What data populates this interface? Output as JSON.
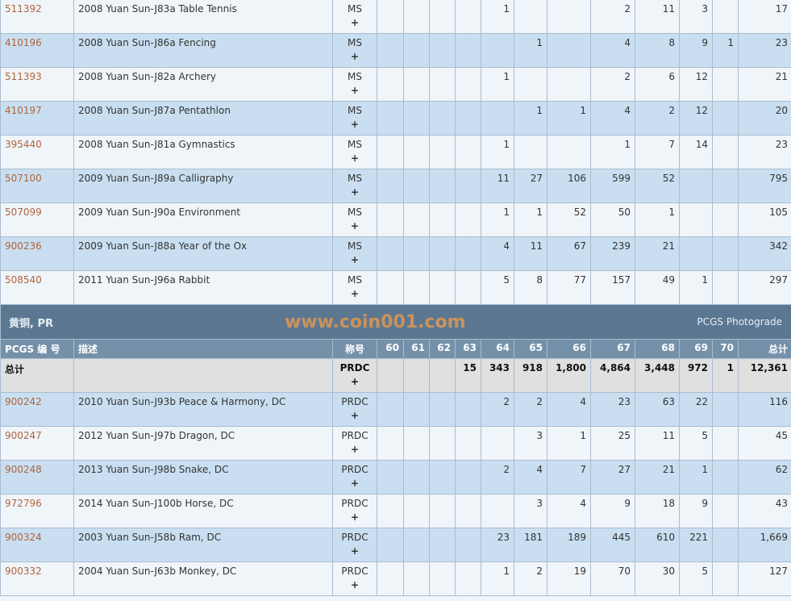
{
  "top_rows": [
    {
      "id": "511392",
      "desc": "2008 Yuan Sun-J83a Table Tennis",
      "des": "MS",
      "g": [
        "",
        "",
        "",
        "",
        "1",
        "",
        "",
        "2",
        "11",
        "3",
        "",
        "17"
      ]
    },
    {
      "id": "410196",
      "desc": "2008 Yuan Sun-J86a Fencing",
      "des": "MS",
      "g": [
        "",
        "",
        "",
        "",
        "",
        "1",
        "",
        "4",
        "8",
        "9",
        "1",
        "23"
      ]
    },
    {
      "id": "511393",
      "desc": "2008 Yuan Sun-J82a Archery",
      "des": "MS",
      "g": [
        "",
        "",
        "",
        "",
        "1",
        "",
        "",
        "2",
        "6",
        "12",
        "",
        "21"
      ]
    },
    {
      "id": "410197",
      "desc": "2008 Yuan Sun-J87a Pentathlon",
      "des": "MS",
      "g": [
        "",
        "",
        "",
        "",
        "",
        "1",
        "1",
        "4",
        "2",
        "12",
        "",
        "20"
      ]
    },
    {
      "id": "395440",
      "desc": "2008 Yuan Sun-J81a Gymnastics",
      "des": "MS",
      "g": [
        "",
        "",
        "",
        "",
        "1",
        "",
        "",
        "1",
        "7",
        "14",
        "",
        "23"
      ]
    },
    {
      "id": "507100",
      "desc": "2009 Yuan Sun-J89a Calligraphy",
      "des": "MS",
      "g": [
        "",
        "",
        "",
        "",
        "11",
        "27",
        "106",
        "599",
        "52",
        "",
        "",
        "795"
      ]
    },
    {
      "id": "507099",
      "desc": "2009 Yuan Sun-J90a Environment",
      "des": "MS",
      "g": [
        "",
        "",
        "",
        "",
        "1",
        "1",
        "52",
        "50",
        "1",
        "",
        "",
        "105"
      ]
    },
    {
      "id": "900236",
      "desc": "2009 Yuan Sun-J88a Year of the Ox",
      "des": "MS",
      "g": [
        "",
        "",
        "",
        "",
        "4",
        "11",
        "67",
        "239",
        "21",
        "",
        "",
        "342"
      ]
    },
    {
      "id": "508540",
      "desc": "2011 Yuan Sun-J96a Rabbit",
      "des": "MS",
      "g": [
        "",
        "",
        "",
        "",
        "5",
        "8",
        "77",
        "157",
        "49",
        "1",
        "",
        "297"
      ]
    }
  ],
  "plus": "+",
  "section": {
    "title": "黄铜, PR",
    "photograde": "PCGS Photograde"
  },
  "headers": [
    "PCGS 编 号",
    "描述",
    "称号",
    "60",
    "61",
    "62",
    "63",
    "64",
    "65",
    "66",
    "67",
    "68",
    "69",
    "70",
    "总计"
  ],
  "total": {
    "label": "总计",
    "des": "PRDC",
    "g": [
      "",
      "",
      "",
      "15",
      "343",
      "918",
      "1,800",
      "4,864",
      "3,448",
      "972",
      "1",
      "12,361"
    ]
  },
  "pr_rows": [
    {
      "id": "900242",
      "desc": "2010 Yuan Sun-J93b Peace & Harmony, DC",
      "des": "PRDC",
      "g": [
        "",
        "",
        "",
        "",
        "2",
        "2",
        "4",
        "23",
        "63",
        "22",
        "",
        "116"
      ]
    },
    {
      "id": "900247",
      "desc": "2012 Yuan Sun-J97b Dragon, DC",
      "des": "PRDC",
      "g": [
        "",
        "",
        "",
        "",
        "",
        "3",
        "1",
        "25",
        "11",
        "5",
        "",
        "45"
      ]
    },
    {
      "id": "900248",
      "desc": "2013 Yuan Sun-J98b Snake, DC",
      "des": "PRDC",
      "g": [
        "",
        "",
        "",
        "",
        "2",
        "4",
        "7",
        "27",
        "21",
        "1",
        "",
        "62"
      ]
    },
    {
      "id": "972796",
      "desc": "2014 Yuan Sun-J100b Horse, DC",
      "des": "PRDC",
      "g": [
        "",
        "",
        "",
        "",
        "",
        "3",
        "4",
        "9",
        "18",
        "9",
        "",
        "43"
      ]
    },
    {
      "id": "900324",
      "desc": "2003 Yuan Sun-J58b Ram, DC",
      "des": "PRDC",
      "g": [
        "",
        "",
        "",
        "",
        "23",
        "181",
        "189",
        "445",
        "610",
        "221",
        "",
        "1,669"
      ]
    },
    {
      "id": "900332",
      "desc": "2004 Yuan Sun-J63b Monkey, DC",
      "des": "PRDC",
      "g": [
        "",
        "",
        "",
        "",
        "1",
        "2",
        "19",
        "70",
        "30",
        "5",
        "",
        "127"
      ]
    }
  ],
  "watermark": "www.coin001.com"
}
